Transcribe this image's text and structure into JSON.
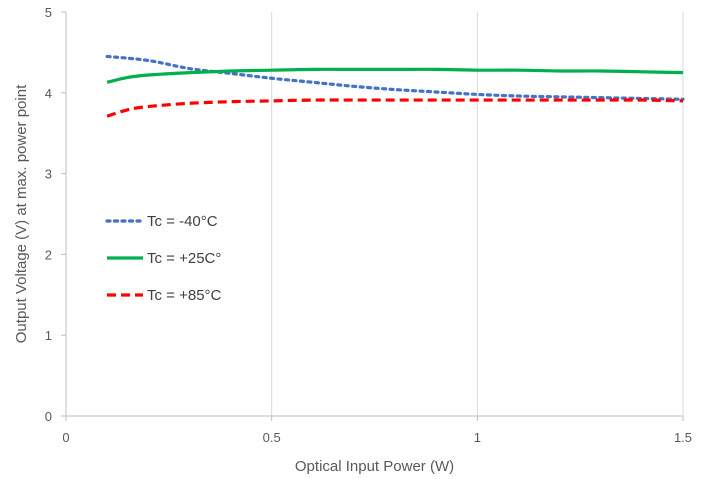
{
  "chart_data": {
    "type": "line",
    "title": "",
    "xlabel": "Optical Input Power (W)",
    "ylabel": "Output Voltage (V)  at max. power point",
    "xlim": [
      0,
      1.5
    ],
    "ylim": [
      0,
      5
    ],
    "x_ticks": [
      0,
      0.5,
      1,
      1.5
    ],
    "x_tick_labels": [
      "0",
      "0.5",
      "1",
      "1.5"
    ],
    "y_ticks": [
      0,
      1,
      2,
      3,
      4,
      5
    ],
    "y_tick_labels": [
      "0",
      "1",
      "2",
      "3",
      "4",
      "5"
    ],
    "grid": "vertical",
    "legend_position": "left-middle",
    "series": [
      {
        "name": "Tc = -40°C",
        "color": "#4472C4",
        "style": "dotted",
        "x": [
          0.1,
          0.2,
          0.3,
          0.4,
          0.5,
          0.6,
          0.7,
          0.8,
          0.9,
          1.0,
          1.1,
          1.2,
          1.3,
          1.4,
          1.5
        ],
        "y": [
          4.45,
          4.4,
          4.3,
          4.24,
          4.18,
          4.13,
          4.08,
          4.04,
          4.01,
          3.98,
          3.96,
          3.95,
          3.94,
          3.93,
          3.92
        ]
      },
      {
        "name": "Tc = +25C°",
        "color": "#00B050",
        "style": "solid",
        "x": [
          0.1,
          0.15,
          0.2,
          0.3,
          0.4,
          0.5,
          0.6,
          0.7,
          0.8,
          0.9,
          1.0,
          1.1,
          1.2,
          1.3,
          1.4,
          1.5
        ],
        "y": [
          4.13,
          4.19,
          4.22,
          4.25,
          4.27,
          4.28,
          4.29,
          4.29,
          4.29,
          4.29,
          4.28,
          4.28,
          4.27,
          4.27,
          4.26,
          4.25
        ]
      },
      {
        "name": "Tc = +85°C",
        "color": "#FF0000",
        "style": "dashed",
        "x": [
          0.1,
          0.15,
          0.2,
          0.3,
          0.4,
          0.5,
          0.6,
          0.7,
          0.8,
          0.9,
          1.0,
          1.1,
          1.2,
          1.3,
          1.4,
          1.5
        ],
        "y": [
          3.71,
          3.79,
          3.83,
          3.87,
          3.89,
          3.9,
          3.91,
          3.91,
          3.91,
          3.91,
          3.91,
          3.91,
          3.91,
          3.91,
          3.91,
          3.9
        ]
      }
    ]
  }
}
